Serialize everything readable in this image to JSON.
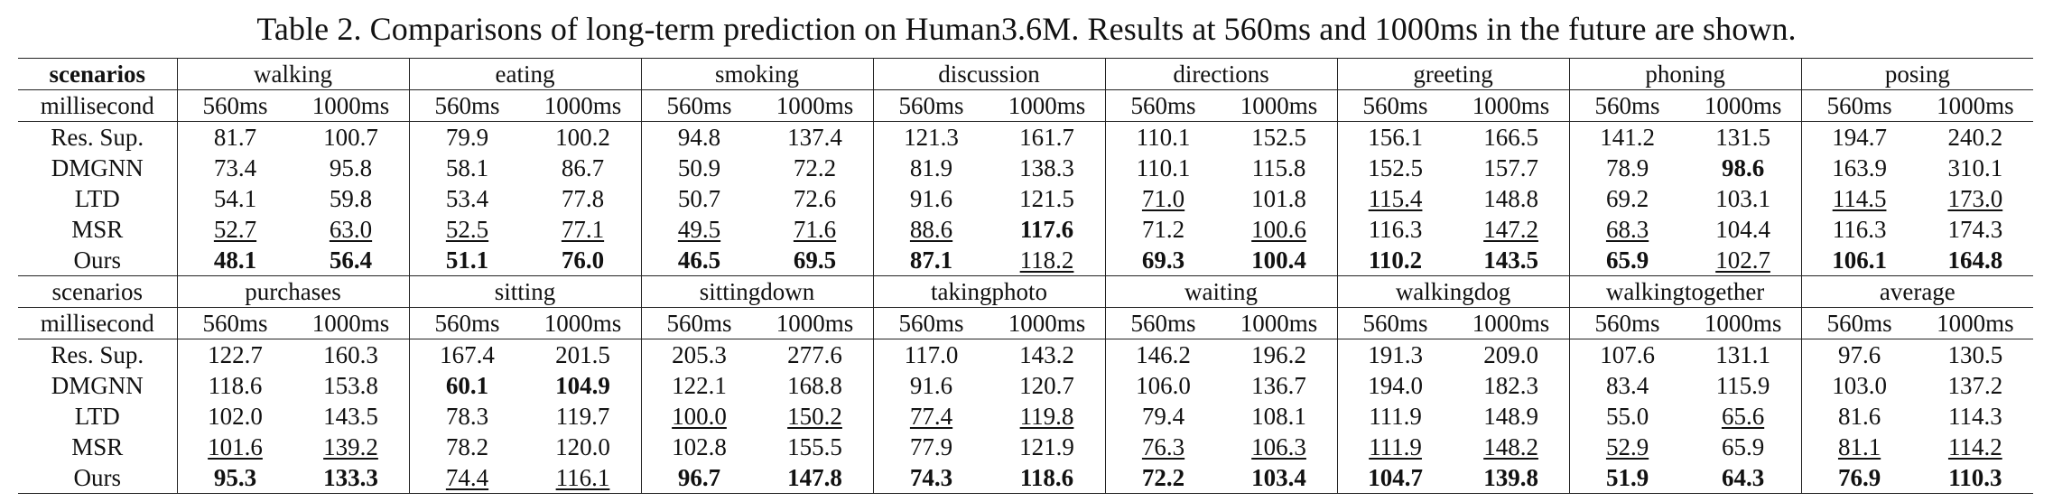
{
  "caption": "Table 2. Comparisons of long-term prediction on Human3.6M. Results at 560ms and 1000ms in the future are shown.",
  "time_labels": [
    "560ms",
    "1000ms"
  ],
  "blocks": [
    {
      "scenario_label": "scenarios",
      "scenario_label_bold": true,
      "millisecond_label": "millisecond",
      "actions": [
        "walking",
        "eating",
        "smoking",
        "discussion",
        "directions",
        "greeting",
        "phoning",
        "posing"
      ],
      "rows": [
        {
          "method": "Res. Sup.",
          "cells": [
            {
              "v": "81.7"
            },
            {
              "v": "100.7"
            },
            {
              "v": "79.9"
            },
            {
              "v": "100.2"
            },
            {
              "v": "94.8"
            },
            {
              "v": "137.4"
            },
            {
              "v": "121.3"
            },
            {
              "v": "161.7"
            },
            {
              "v": "110.1"
            },
            {
              "v": "152.5"
            },
            {
              "v": "156.1"
            },
            {
              "v": "166.5"
            },
            {
              "v": "141.2"
            },
            {
              "v": "131.5"
            },
            {
              "v": "194.7"
            },
            {
              "v": "240.2"
            }
          ]
        },
        {
          "method": "DMGNN",
          "cells": [
            {
              "v": "73.4"
            },
            {
              "v": "95.8"
            },
            {
              "v": "58.1"
            },
            {
              "v": "86.7"
            },
            {
              "v": "50.9"
            },
            {
              "v": "72.2"
            },
            {
              "v": "81.9"
            },
            {
              "v": "138.3"
            },
            {
              "v": "110.1"
            },
            {
              "v": "115.8"
            },
            {
              "v": "152.5"
            },
            {
              "v": "157.7"
            },
            {
              "v": "78.9"
            },
            {
              "v": "98.6",
              "b": true
            },
            {
              "v": "163.9"
            },
            {
              "v": "310.1"
            }
          ]
        },
        {
          "method": "LTD",
          "cells": [
            {
              "v": "54.1"
            },
            {
              "v": "59.8"
            },
            {
              "v": "53.4"
            },
            {
              "v": "77.8"
            },
            {
              "v": "50.7"
            },
            {
              "v": "72.6"
            },
            {
              "v": "91.6"
            },
            {
              "v": "121.5"
            },
            {
              "v": "71.0",
              "u": true
            },
            {
              "v": "101.8"
            },
            {
              "v": "115.4",
              "u": true
            },
            {
              "v": "148.8"
            },
            {
              "v": "69.2"
            },
            {
              "v": "103.1"
            },
            {
              "v": "114.5",
              "u": true
            },
            {
              "v": "173.0",
              "u": true
            }
          ]
        },
        {
          "method": "MSR",
          "cells": [
            {
              "v": "52.7",
              "u": true
            },
            {
              "v": "63.0",
              "u": true
            },
            {
              "v": "52.5",
              "u": true
            },
            {
              "v": "77.1",
              "u": true
            },
            {
              "v": "49.5",
              "u": true
            },
            {
              "v": "71.6",
              "u": true
            },
            {
              "v": "88.6",
              "u": true
            },
            {
              "v": "117.6",
              "b": true
            },
            {
              "v": "71.2"
            },
            {
              "v": "100.6",
              "u": true
            },
            {
              "v": "116.3"
            },
            {
              "v": "147.2",
              "u": true
            },
            {
              "v": "68.3",
              "u": true
            },
            {
              "v": "104.4"
            },
            {
              "v": "116.3"
            },
            {
              "v": "174.3"
            }
          ]
        },
        {
          "method": "Ours",
          "cells": [
            {
              "v": "48.1",
              "b": true
            },
            {
              "v": "56.4",
              "b": true
            },
            {
              "v": "51.1",
              "b": true
            },
            {
              "v": "76.0",
              "b": true
            },
            {
              "v": "46.5",
              "b": true
            },
            {
              "v": "69.5",
              "b": true
            },
            {
              "v": "87.1",
              "b": true
            },
            {
              "v": "118.2",
              "u": true
            },
            {
              "v": "69.3",
              "b": true
            },
            {
              "v": "100.4",
              "b": true
            },
            {
              "v": "110.2",
              "b": true
            },
            {
              "v": "143.5",
              "b": true
            },
            {
              "v": "65.9",
              "b": true
            },
            {
              "v": "102.7",
              "u": true
            },
            {
              "v": "106.1",
              "b": true
            },
            {
              "v": "164.8",
              "b": true
            }
          ]
        }
      ]
    },
    {
      "scenario_label": "scenarios",
      "scenario_label_bold": false,
      "millisecond_label": "millisecond",
      "actions": [
        "purchases",
        "sitting",
        "sittingdown",
        "takingphoto",
        "waiting",
        "walkingdog",
        "walkingtogether",
        "average"
      ],
      "rows": [
        {
          "method": "Res. Sup.",
          "cells": [
            {
              "v": "122.7"
            },
            {
              "v": "160.3"
            },
            {
              "v": "167.4"
            },
            {
              "v": "201.5"
            },
            {
              "v": "205.3"
            },
            {
              "v": "277.6"
            },
            {
              "v": "117.0"
            },
            {
              "v": "143.2"
            },
            {
              "v": "146.2"
            },
            {
              "v": "196.2"
            },
            {
              "v": "191.3"
            },
            {
              "v": "209.0"
            },
            {
              "v": "107.6"
            },
            {
              "v": "131.1"
            },
            {
              "v": "97.6"
            },
            {
              "v": "130.5"
            }
          ]
        },
        {
          "method": "DMGNN",
          "cells": [
            {
              "v": "118.6"
            },
            {
              "v": "153.8"
            },
            {
              "v": "60.1",
              "b": true
            },
            {
              "v": "104.9",
              "b": true
            },
            {
              "v": "122.1"
            },
            {
              "v": "168.8"
            },
            {
              "v": "91.6"
            },
            {
              "v": "120.7"
            },
            {
              "v": "106.0"
            },
            {
              "v": "136.7"
            },
            {
              "v": "194.0"
            },
            {
              "v": "182.3"
            },
            {
              "v": "83.4"
            },
            {
              "v": "115.9"
            },
            {
              "v": "103.0"
            },
            {
              "v": "137.2"
            }
          ]
        },
        {
          "method": "LTD",
          "cells": [
            {
              "v": "102.0"
            },
            {
              "v": "143.5"
            },
            {
              "v": "78.3"
            },
            {
              "v": "119.7"
            },
            {
              "v": "100.0",
              "u": true
            },
            {
              "v": "150.2",
              "u": true
            },
            {
              "v": "77.4",
              "u": true
            },
            {
              "v": "119.8",
              "u": true
            },
            {
              "v": "79.4"
            },
            {
              "v": "108.1"
            },
            {
              "v": "111.9"
            },
            {
              "v": "148.9"
            },
            {
              "v": "55.0"
            },
            {
              "v": "65.6",
              "u": true
            },
            {
              "v": "81.6"
            },
            {
              "v": "114.3"
            }
          ]
        },
        {
          "method": "MSR",
          "cells": [
            {
              "v": "101.6",
              "u": true
            },
            {
              "v": "139.2",
              "u": true
            },
            {
              "v": "78.2"
            },
            {
              "v": "120.0"
            },
            {
              "v": "102.8"
            },
            {
              "v": "155.5"
            },
            {
              "v": "77.9"
            },
            {
              "v": "121.9"
            },
            {
              "v": "76.3",
              "u": true
            },
            {
              "v": "106.3",
              "u": true
            },
            {
              "v": "111.9",
              "u": true
            },
            {
              "v": "148.2",
              "u": true
            },
            {
              "v": "52.9",
              "u": true
            },
            {
              "v": "65.9"
            },
            {
              "v": "81.1",
              "u": true
            },
            {
              "v": "114.2",
              "u": true
            }
          ]
        },
        {
          "method": "Ours",
          "cells": [
            {
              "v": "95.3",
              "b": true
            },
            {
              "v": "133.3",
              "b": true
            },
            {
              "v": "74.4",
              "u": true
            },
            {
              "v": "116.1",
              "u": true
            },
            {
              "v": "96.7",
              "b": true
            },
            {
              "v": "147.8",
              "b": true
            },
            {
              "v": "74.3",
              "b": true
            },
            {
              "v": "118.6",
              "b": true
            },
            {
              "v": "72.2",
              "b": true
            },
            {
              "v": "103.4",
              "b": true
            },
            {
              "v": "104.7",
              "b": true
            },
            {
              "v": "139.8",
              "b": true
            },
            {
              "v": "51.9",
              "b": true
            },
            {
              "v": "64.3",
              "b": true
            },
            {
              "v": "76.9",
              "b": true
            },
            {
              "v": "110.3",
              "b": true
            }
          ]
        }
      ]
    }
  ]
}
